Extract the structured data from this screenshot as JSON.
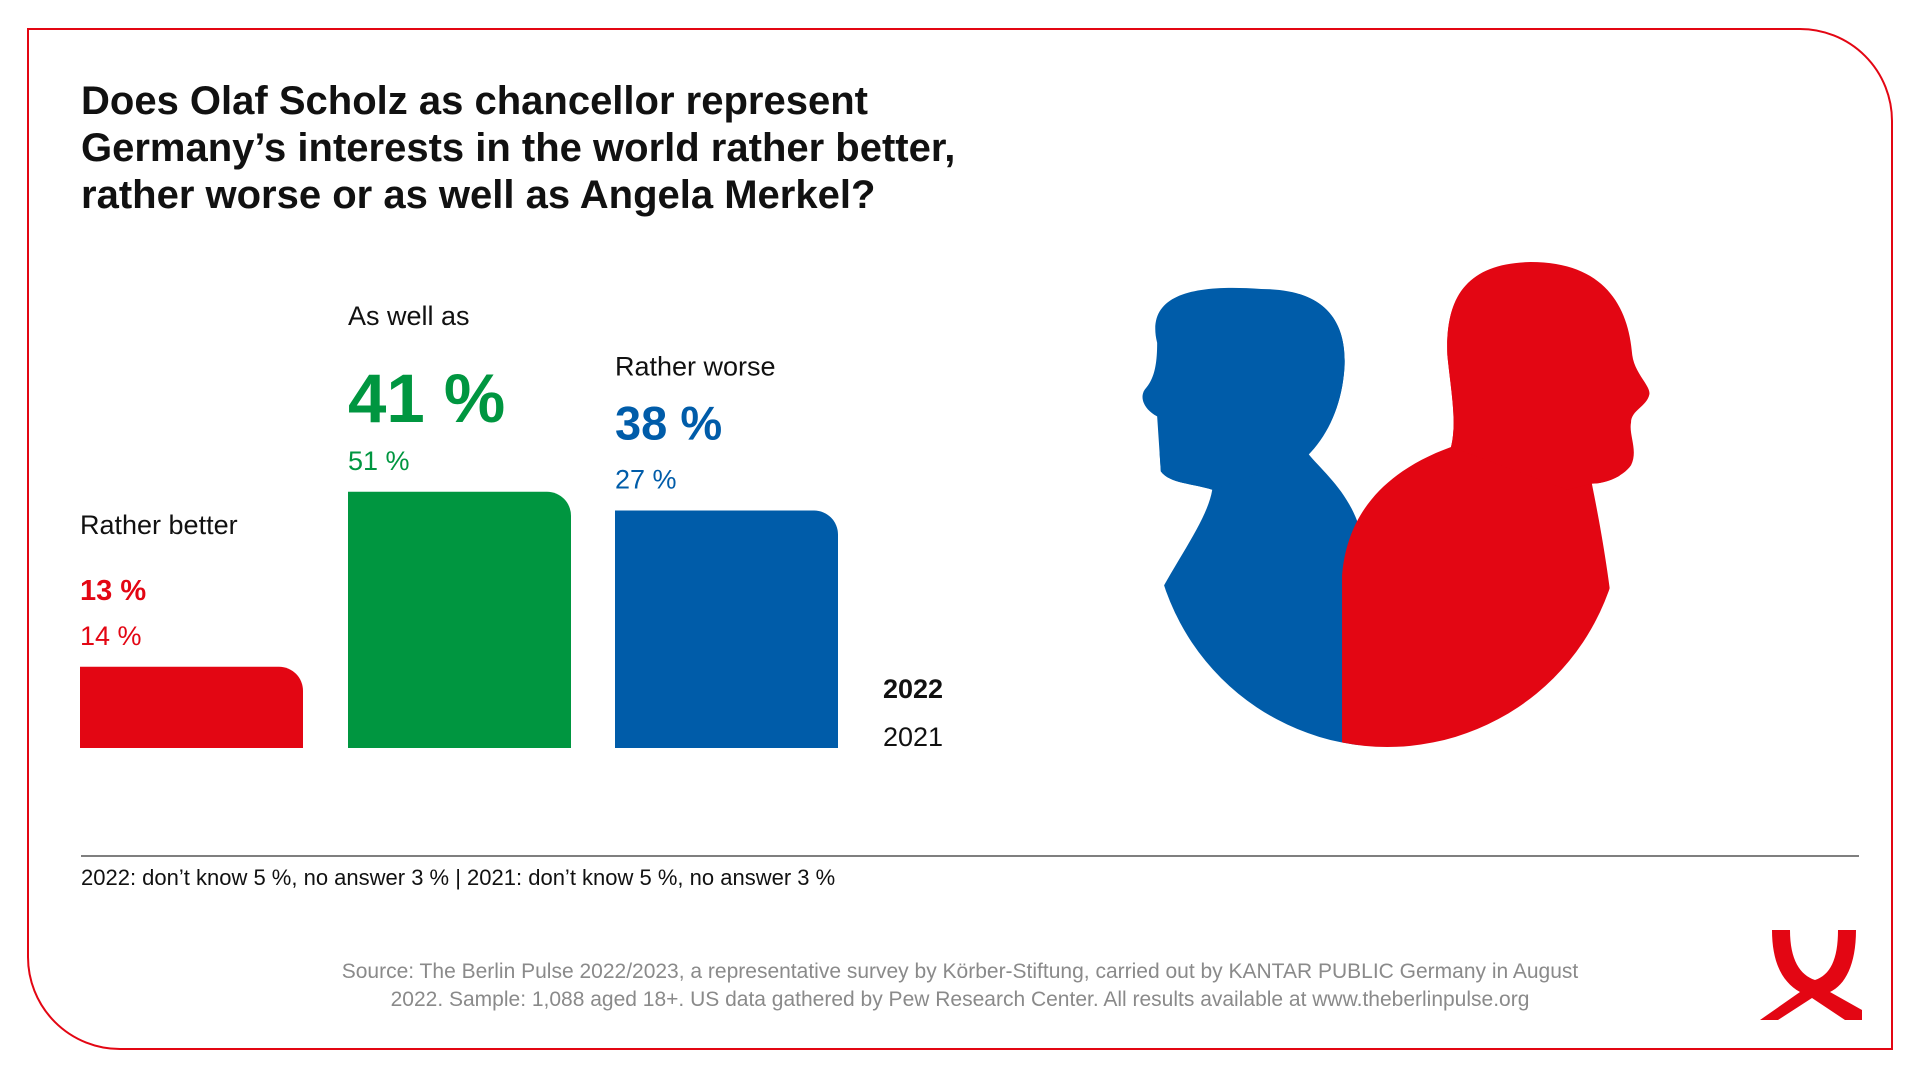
{
  "chart_data": {
    "type": "bar",
    "title": [
      "Does Olaf Scholz as chancellor represent",
      "Germany’s interests in the world rather better,",
      "rather worse or as well as Angela Merkel?"
    ],
    "categories": [
      "Rather better",
      "As well as",
      "Rather worse"
    ],
    "colors": [
      "#e30613",
      "#009640",
      "#005ca9"
    ],
    "series": [
      {
        "name": "2022",
        "values": [
          13,
          41,
          38
        ],
        "value_labels": [
          "13 %",
          "41 %",
          "38 %"
        ]
      },
      {
        "name": "2021",
        "values": [
          14,
          51,
          27
        ],
        "value_labels": [
          "14 %",
          "51 %",
          "27 %"
        ]
      }
    ],
    "footnote": "2022: don’t know 5 %, no answer 3 % | 2021: don’t know 5 %, no answer 3 %",
    "source": [
      "Source: The Berlin Pulse 2022/2023, a representative survey by Körber-Stiftung, carried out by KANTAR PUBLIC Germany in August",
      "2022. Sample: 1,088 aged 18+. US data gathered by Pew Research Center. All results available at www.theberlinpulse.org"
    ]
  }
}
